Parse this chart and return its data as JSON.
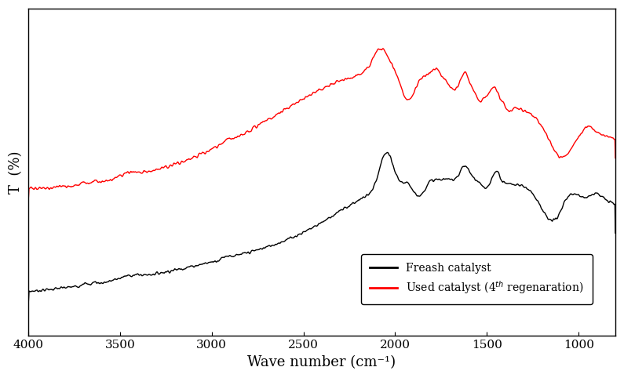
{
  "title": "",
  "xlabel": "Wave number (cm⁻¹)",
  "ylabel": "T  (%)",
  "xlim": [
    4000,
    800
  ],
  "xticks": [
    4000,
    3500,
    3000,
    2500,
    2000,
    1500,
    1000
  ],
  "legend_labels": [
    "Freash catalyst",
    "Used catalyst (4ᵗh regenaration)"
  ],
  "line_colors": [
    "black",
    "red"
  ],
  "line_width": 1.0,
  "background_color": "#ffffff",
  "xlabel_fontsize": 13,
  "ylabel_fontsize": 13,
  "tick_fontsize": 11
}
